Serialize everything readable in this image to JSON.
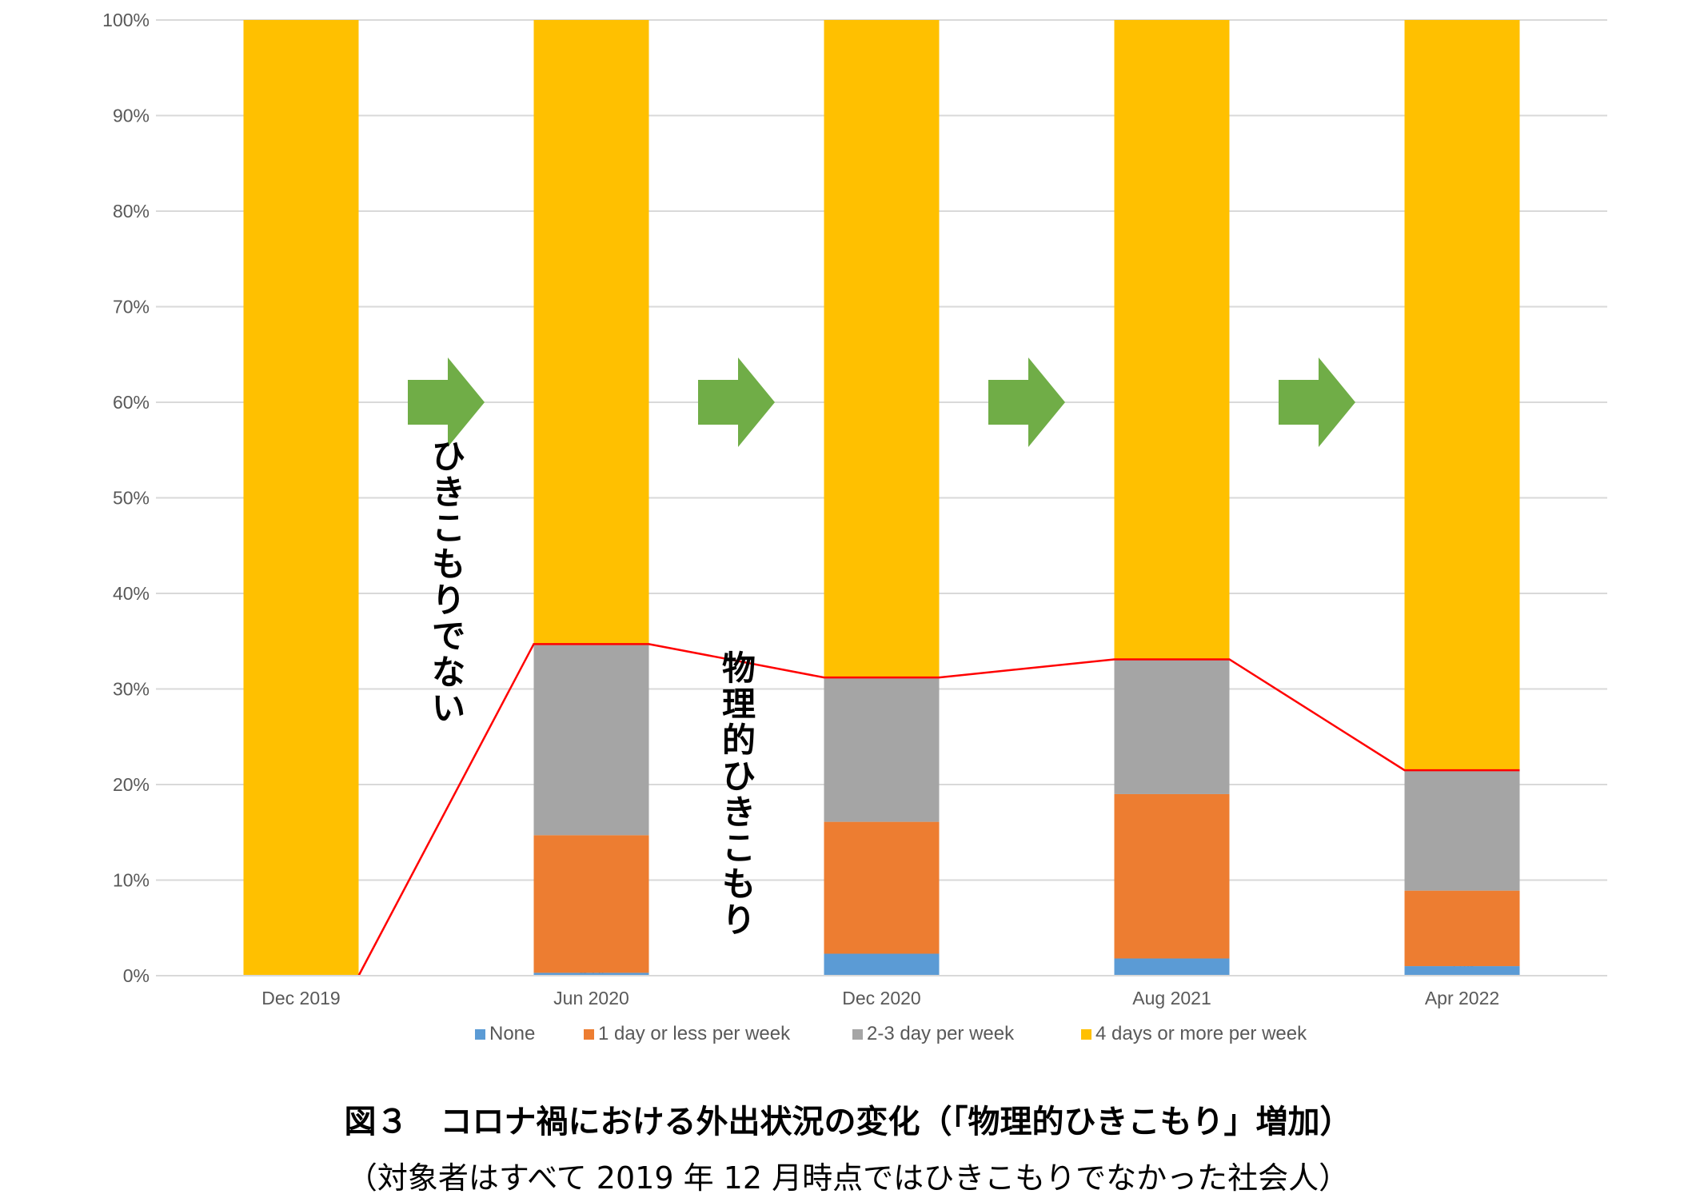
{
  "chart_data": {
    "type": "bar",
    "stacked": true,
    "categories": [
      "Dec 2019",
      "Jun 2020",
      "Dec 2020",
      "Aug 2021",
      "Apr 2022"
    ],
    "series": [
      {
        "name": "None",
        "color": "#5B9BD5",
        "values": [
          0,
          0.3,
          2.3,
          1.8,
          1.0
        ],
        "labels": [
          "0%",
          "0%",
          "2%",
          "2%",
          "1%"
        ]
      },
      {
        "name": "1 day or less per week",
        "color": "#ED7D31",
        "values": [
          0,
          14.4,
          13.8,
          17.2,
          7.9
        ],
        "labels": [
          "",
          "14%",
          "14%",
          "17%",
          "8%"
        ]
      },
      {
        "name": "2-3 day per week",
        "color": "#A5A5A5",
        "values": [
          0,
          20.0,
          15.1,
          14.1,
          12.6
        ],
        "labels": [
          "",
          "20%",
          "15%",
          "14%",
          "13%"
        ]
      },
      {
        "name": "4 days or more per week",
        "color": "#FFC000",
        "values": [
          100,
          65.3,
          68.8,
          66.9,
          78.5
        ],
        "labels": [
          "100%",
          "65%",
          "69%",
          "67%",
          "79%"
        ]
      }
    ],
    "ylim": [
      0,
      100
    ],
    "yticks": [
      "0%",
      "10%",
      "20%",
      "30%",
      "40%",
      "50%",
      "60%",
      "70%",
      "80%",
      "90%",
      "100%"
    ],
    "grid": true,
    "legend": "bottom",
    "trend_line": {
      "color": "#FF0000",
      "values": [
        0,
        34.7,
        31.2,
        33.1,
        21.5
      ]
    },
    "arrows": {
      "color": "#70AD47",
      "count": 4
    },
    "annotations": [
      {
        "text": "ひきこもりでない"
      },
      {
        "text": "物理的ひきこもり"
      }
    ]
  },
  "caption": {
    "title": "図３　コロナ禍における外出状況の変化（「物理的ひきこもり」増加）",
    "subtitle": "（対象者はすべて 2019 年 12 月時点ではひきこもりでなかった社会人）"
  }
}
